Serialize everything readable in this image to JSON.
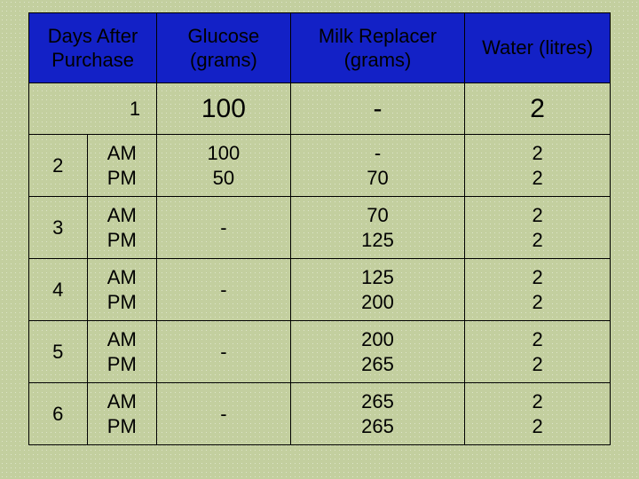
{
  "header": {
    "days_after_purchase": "Days After\nPurchase",
    "glucose": "Glucose\n(grams)",
    "milk_replacer": "Milk Replacer\n(grams)",
    "water": "Water (litres)"
  },
  "colors": {
    "background": "#c3cf9f",
    "header_bg": "#1321c6",
    "border": "#000000",
    "text": "#000000"
  },
  "row1": {
    "day": "1",
    "glucose": "100",
    "milk": "-",
    "water": "2"
  },
  "rows": [
    {
      "day": "2",
      "ampm": "AM\nPM",
      "glucose": "100\n50",
      "milk": "-\n70",
      "water": "2\n2"
    },
    {
      "day": "3",
      "ampm": "AM\nPM",
      "glucose": "-",
      "milk": "70\n125",
      "water": "2\n2"
    },
    {
      "day": "4",
      "ampm": "AM\nPM",
      "glucose": "-",
      "milk": "125\n200",
      "water": "2\n2"
    },
    {
      "day": "5",
      "ampm": "AM\nPM",
      "glucose": "-",
      "milk": "200\n265",
      "water": "2\n2"
    },
    {
      "day": "6",
      "ampm": "AM\nPM",
      "glucose": "-",
      "milk": "265\n265",
      "water": "2\n2"
    }
  ]
}
